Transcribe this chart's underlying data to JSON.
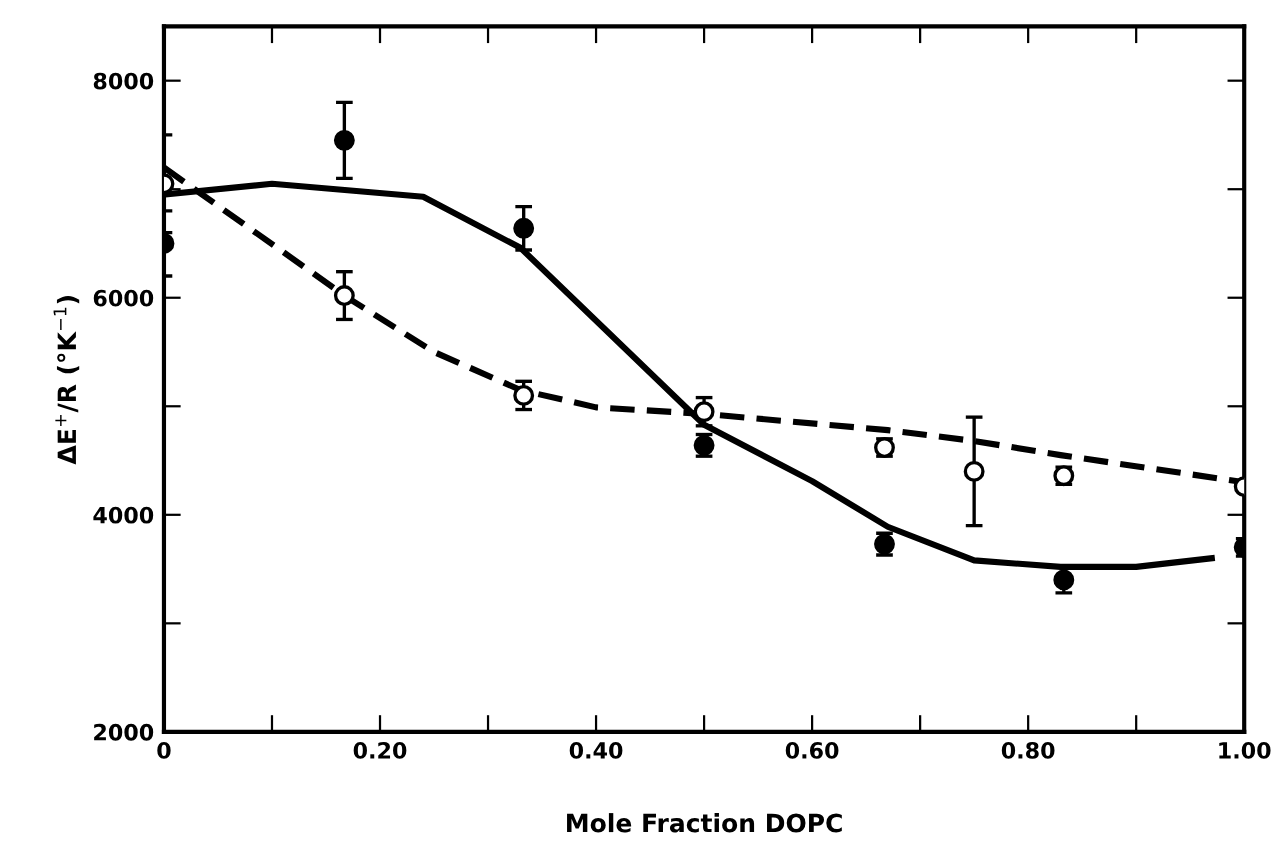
{
  "chart_data": {
    "type": "scatter",
    "xlabel": "Mole Fraction DOPC",
    "ylabel": "ΔE$^{+}$/R (°K$^{−1}$)",
    "xlim": [
      0,
      1
    ],
    "ylim": [
      2000,
      8500
    ],
    "xticks": [
      0,
      {
        "value": 0.1,
        "label": null
      },
      {
        "value": 0.2,
        "label": "0.20"
      },
      {
        "value": 0.3,
        "label": null
      },
      {
        "value": 0.4,
        "label": "0.40"
      },
      {
        "value": 0.5,
        "label": null
      },
      {
        "value": 0.6,
        "label": "0.60"
      },
      {
        "value": 0.7,
        "label": null
      },
      {
        "value": 0.8,
        "label": "0.80"
      },
      {
        "value": 0.9,
        "label": null
      },
      {
        "value": 1.0,
        "label": "1.00"
      }
    ],
    "yticks": [
      2000,
      {
        "value": 3000,
        "label": null
      },
      4000,
      {
        "value": 5000,
        "label": null
      },
      6000,
      {
        "value": 7000,
        "label": null
      },
      8000
    ],
    "grid": false,
    "legend": false,
    "series": [
      {
        "type": "line",
        "color": "#000000",
        "line_style": "solid",
        "marker": "none",
        "x": [
          0,
          0.1,
          0.24,
          0.33,
          0.5,
          0.6,
          0.67,
          0.75,
          0.83,
          0.9,
          0.97
        ],
        "values": [
          6950,
          7050,
          6930,
          6460,
          4830,
          4310,
          3890,
          3580,
          3520,
          3520,
          3600
        ]
      },
      {
        "type": "line",
        "color": "#000000",
        "line_style": "dashed",
        "marker": "none",
        "x": [
          0,
          0.17,
          0.25,
          0.33,
          0.4,
          0.5,
          0.67,
          0.75,
          0.83,
          1.0
        ],
        "values": [
          7200,
          6000,
          5500,
          5150,
          4990,
          4930,
          4780,
          4680,
          4550,
          4300
        ]
      },
      {
        "color": "#000000",
        "marker": "circle",
        "x": [
          0,
          0.167,
          0.333,
          0.5,
          0.667,
          0.833,
          1.0
        ],
        "values": [
          6500,
          7450,
          6640,
          4640,
          3730,
          3400,
          3700
        ],
        "errors": [
          300,
          350,
          200,
          100,
          100,
          120,
          80
        ]
      },
      {
        "color": "#ffffff",
        "marker": "circle",
        "x": [
          0,
          0.167,
          0.333,
          0.5,
          0.667,
          0.75,
          0.833,
          1.0
        ],
        "values": [
          7050,
          6020,
          5100,
          4950,
          4620,
          4400,
          4360,
          4260
        ],
        "errors": [
          450,
          220,
          130,
          130,
          80,
          500,
          80,
          null
        ]
      }
    ]
  }
}
